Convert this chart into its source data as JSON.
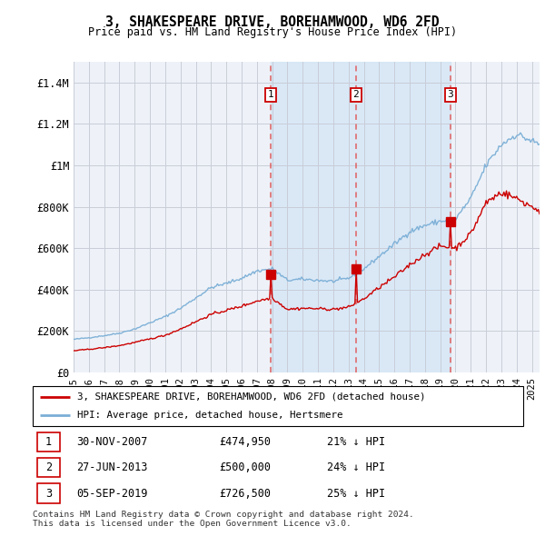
{
  "title": "3, SHAKESPEARE DRIVE, BOREHAMWOOD, WD6 2FD",
  "subtitle": "Price paid vs. HM Land Registry's House Price Index (HPI)",
  "legend_address": "3, SHAKESPEARE DRIVE, BOREHAMWOOD, WD6 2FD (detached house)",
  "legend_hpi": "HPI: Average price, detached house, Hertsmere",
  "sale_color": "#cc0000",
  "hpi_color": "#7aaed6",
  "vline_color": "#e06060",
  "marker_color": "#cc0000",
  "footnote": "Contains HM Land Registry data © Crown copyright and database right 2024.\nThis data is licensed under the Open Government Licence v3.0.",
  "sales": [
    {
      "date_num": 2007.92,
      "price": 474950,
      "label": "1",
      "date_str": "30-NOV-2007",
      "pct": "21% ↓ HPI"
    },
    {
      "date_num": 2013.49,
      "price": 500000,
      "label": "2",
      "date_str": "27-JUN-2013",
      "pct": "24% ↓ HPI"
    },
    {
      "date_num": 2019.67,
      "price": 726500,
      "label": "3",
      "date_str": "05-SEP-2019",
      "pct": "25% ↓ HPI"
    }
  ],
  "ylim": [
    0,
    1500000
  ],
  "yticks": [
    0,
    200000,
    400000,
    600000,
    800000,
    1000000,
    1200000,
    1400000
  ],
  "ytick_labels": [
    "£0",
    "£200K",
    "£400K",
    "£600K",
    "£800K",
    "£1M",
    "£1.2M",
    "£1.4M"
  ],
  "xlim": [
    1995.0,
    2025.5
  ],
  "xticks": [
    1995,
    1996,
    1997,
    1998,
    1999,
    2000,
    2001,
    2002,
    2003,
    2004,
    2005,
    2006,
    2007,
    2008,
    2009,
    2010,
    2011,
    2012,
    2013,
    2014,
    2015,
    2016,
    2017,
    2018,
    2019,
    2020,
    2021,
    2022,
    2023,
    2024,
    2025
  ],
  "shaded_region": [
    2007.92,
    2019.67
  ],
  "plot_bg": "#eef2f8",
  "grid_color": "#c8cdd8"
}
